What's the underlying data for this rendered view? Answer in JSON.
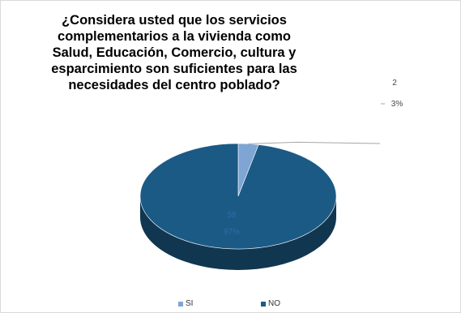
{
  "chart_data": {
    "type": "pie",
    "title": "¿Considera usted que los servicios\ncomplementarios a la vivienda como\nSalud, Educación, Comercio, cultura y\nesparcimiento son suficientes para las\nnecesidades del centro poblado?",
    "style": "3d",
    "categories": [
      "SI",
      "NO"
    ],
    "values": [
      2,
      58
    ],
    "percent_labels": [
      "3%",
      "97%"
    ],
    "value_labels": [
      "2",
      "58"
    ],
    "colors": [
      "#7ea5d3",
      "#1c5a86"
    ],
    "legend_position": "bottom"
  }
}
